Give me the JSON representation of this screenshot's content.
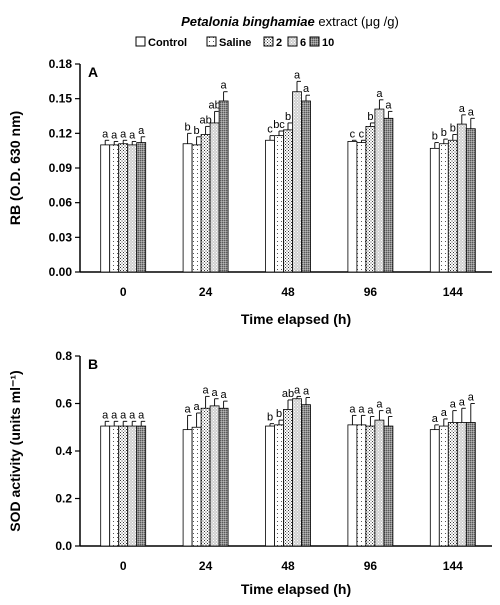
{
  "header": {
    "species": "Petalonia binghamiae",
    "rest": " extract (μg /g)"
  },
  "legend": [
    {
      "label": "Control",
      "pattern": "p0"
    },
    {
      "label": "Saline",
      "pattern": "p1"
    },
    {
      "label": "2",
      "pattern": "p2"
    },
    {
      "label": "6",
      "pattern": "p3"
    },
    {
      "label": "10",
      "pattern": "p4"
    }
  ],
  "chart_data": [
    {
      "type": "bar",
      "panel": "A",
      "ylabel": "RB (O.D. 630 nm)",
      "xlabel": "Time elapsed (h)",
      "ylim": [
        0,
        0.18
      ],
      "yticks": [
        "0.00",
        "0.03",
        "0.06",
        "0.09",
        "0.12",
        "0.15",
        "0.18"
      ],
      "categories": [
        "0",
        "24",
        "48",
        "96",
        "144"
      ],
      "series": [
        {
          "name": "Control",
          "values": [
            0.11,
            0.111,
            0.114,
            0.113,
            0.107
          ],
          "errors": [
            0.004,
            0.009,
            0.004,
            0.001,
            0.005
          ],
          "labels": [
            "a",
            "b",
            "c",
            "c",
            "b"
          ]
        },
        {
          "name": "Saline",
          "values": [
            0.11,
            0.11,
            0.118,
            0.112,
            0.111
          ],
          "errors": [
            0.003,
            0.007,
            0.004,
            0.002,
            0.004
          ],
          "labels": [
            "a",
            "b",
            "bc",
            "c",
            "b"
          ]
        },
        {
          "name": "2",
          "values": [
            0.111,
            0.119,
            0.123,
            0.126,
            0.114
          ],
          "errors": [
            0.003,
            0.007,
            0.006,
            0.003,
            0.005
          ],
          "labels": [
            "a",
            "ab",
            "b",
            "b",
            "b"
          ]
        },
        {
          "name": "6",
          "values": [
            0.11,
            0.129,
            0.156,
            0.141,
            0.128
          ],
          "errors": [
            0.003,
            0.01,
            0.009,
            0.008,
            0.008
          ],
          "labels": [
            "a",
            "ab",
            "a",
            "a",
            "a"
          ]
        },
        {
          "name": "10",
          "values": [
            0.112,
            0.148,
            0.148,
            0.133,
            0.124
          ],
          "errors": [
            0.005,
            0.008,
            0.005,
            0.006,
            0.009
          ],
          "labels": [
            "a",
            "a",
            "a",
            "a",
            "a"
          ]
        }
      ]
    },
    {
      "type": "bar",
      "panel": "B",
      "ylabel": "SOD activity (units ml⁻¹)",
      "xlabel": "Time elapsed (h)",
      "ylim": [
        0,
        0.8
      ],
      "yticks": [
        "0.0",
        "0.2",
        "0.4",
        "0.6",
        "0.8"
      ],
      "categories": [
        "0",
        "24",
        "48",
        "96",
        "144"
      ],
      "series": [
        {
          "name": "Control",
          "values": [
            0.505,
            0.49,
            0.505,
            0.51,
            0.49
          ],
          "errors": [
            0.02,
            0.06,
            0.01,
            0.04,
            0.02
          ],
          "labels": [
            "a",
            "a",
            "b",
            "a",
            "a"
          ]
        },
        {
          "name": "Saline",
          "values": [
            0.505,
            0.5,
            0.51,
            0.51,
            0.505
          ],
          "errors": [
            0.02,
            0.06,
            0.02,
            0.04,
            0.03
          ],
          "labels": [
            "a",
            "a",
            "b",
            "a",
            "a"
          ]
        },
        {
          "name": "2",
          "values": [
            0.505,
            0.58,
            0.575,
            0.505,
            0.52
          ],
          "errors": [
            0.02,
            0.05,
            0.04,
            0.04,
            0.05
          ],
          "labels": [
            "a",
            "a",
            "ab",
            "a",
            "a"
          ]
        },
        {
          "name": "6",
          "values": [
            0.505,
            0.59,
            0.62,
            0.53,
            0.52
          ],
          "errors": [
            0.02,
            0.03,
            0.01,
            0.04,
            0.06
          ],
          "labels": [
            "a",
            "a",
            "a",
            "a",
            "a"
          ]
        },
        {
          "name": "10",
          "values": [
            0.505,
            0.58,
            0.595,
            0.505,
            0.52
          ],
          "errors": [
            0.02,
            0.03,
            0.03,
            0.04,
            0.08
          ],
          "labels": [
            "a",
            "a",
            "a",
            "a",
            "a"
          ]
        }
      ]
    }
  ]
}
